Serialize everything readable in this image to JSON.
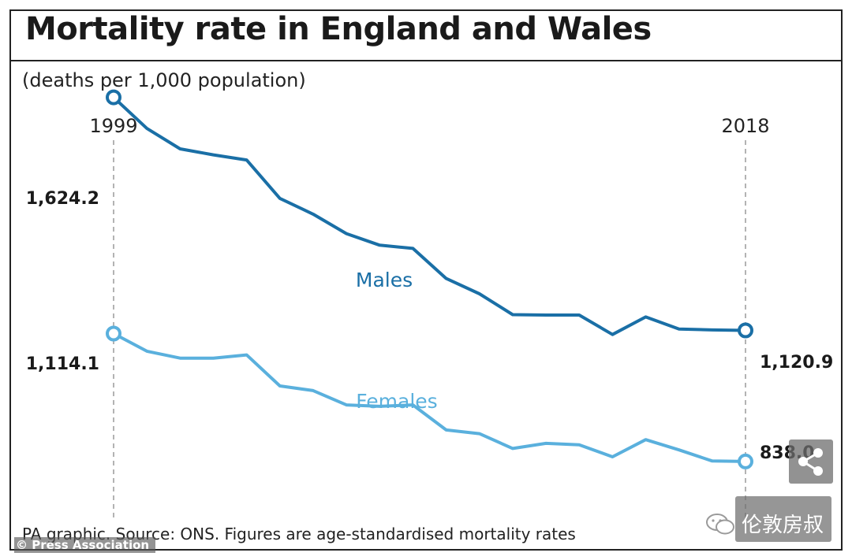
{
  "chart_data": {
    "type": "line",
    "title": "Mortality rate in England and Wales",
    "subtitle": "(deaths per 1,000 population)",
    "x_start_label": "1999",
    "x_end_label": "2018",
    "x": [
      1999,
      2000,
      2001,
      2002,
      2003,
      2004,
      2005,
      2006,
      2007,
      2008,
      2009,
      2010,
      2011,
      2012,
      2013,
      2014,
      2015,
      2016,
      2017,
      2018
    ],
    "ylim": [
      700,
      1700
    ],
    "series": [
      {
        "name": "Males",
        "color": "#1a6fa6",
        "start_label": "1,624.2",
        "end_label": "1,120.9",
        "values": [
          1624.2,
          1557,
          1513,
          1500,
          1489,
          1406,
          1372,
          1330,
          1305,
          1298,
          1233,
          1200,
          1155,
          1154,
          1154,
          1112,
          1150,
          1124,
          1122,
          1120.9
        ]
      },
      {
        "name": "Females",
        "color": "#5ab0dd",
        "start_label": "1,114.1",
        "end_label": "838.0",
        "values": [
          1114.1,
          1076,
          1061,
          1061,
          1068,
          1001,
          991,
          960,
          957,
          960,
          906,
          898,
          866,
          877,
          874,
          848,
          885,
          863,
          839,
          838.0
        ]
      }
    ]
  },
  "footer": {
    "source": "PA graphic. Source: ONS. Figures are age-standardised mortality rates",
    "credit": "© Press Association"
  },
  "watermark": {
    "text": "伦敦房叔"
  }
}
